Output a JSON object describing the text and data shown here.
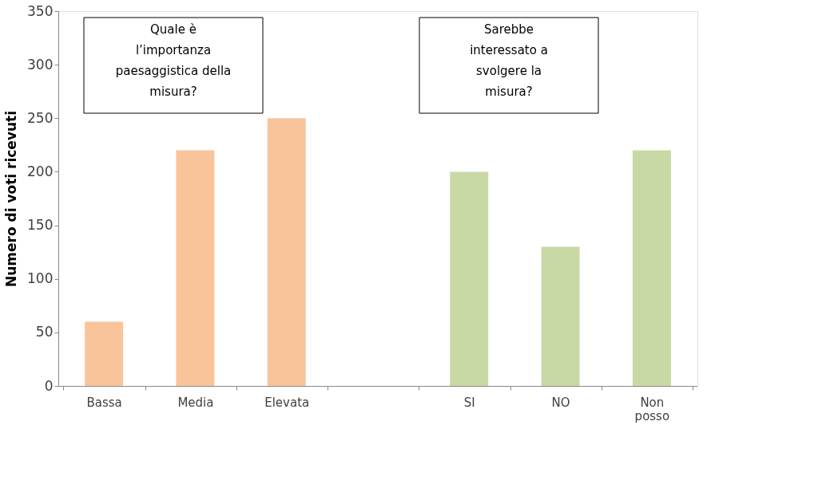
{
  "chart_data": {
    "type": "bar",
    "ylabel": "Numero di voti ricevuti",
    "categories": [
      "Bassa",
      "Media",
      "Elevata",
      null,
      "SI",
      "NO",
      "Non posso"
    ],
    "values": [
      60,
      220,
      250,
      null,
      200,
      130,
      220
    ],
    "colors": [
      "#f9c49a",
      "#f9c49a",
      "#f9c49a",
      null,
      "#c9d9a5",
      "#c9d9a5",
      "#c9d9a5"
    ],
    "ylim": [
      0,
      350
    ],
    "yticks": [
      0,
      50,
      100,
      150,
      200,
      250,
      300,
      350
    ],
    "grid": false,
    "annotations": [
      "Quale è\nl’importanza\npaesaggistica della\nmisura?",
      "Sarebbe\ninteressato a\nsvolgere la\nmisura?"
    ]
  }
}
